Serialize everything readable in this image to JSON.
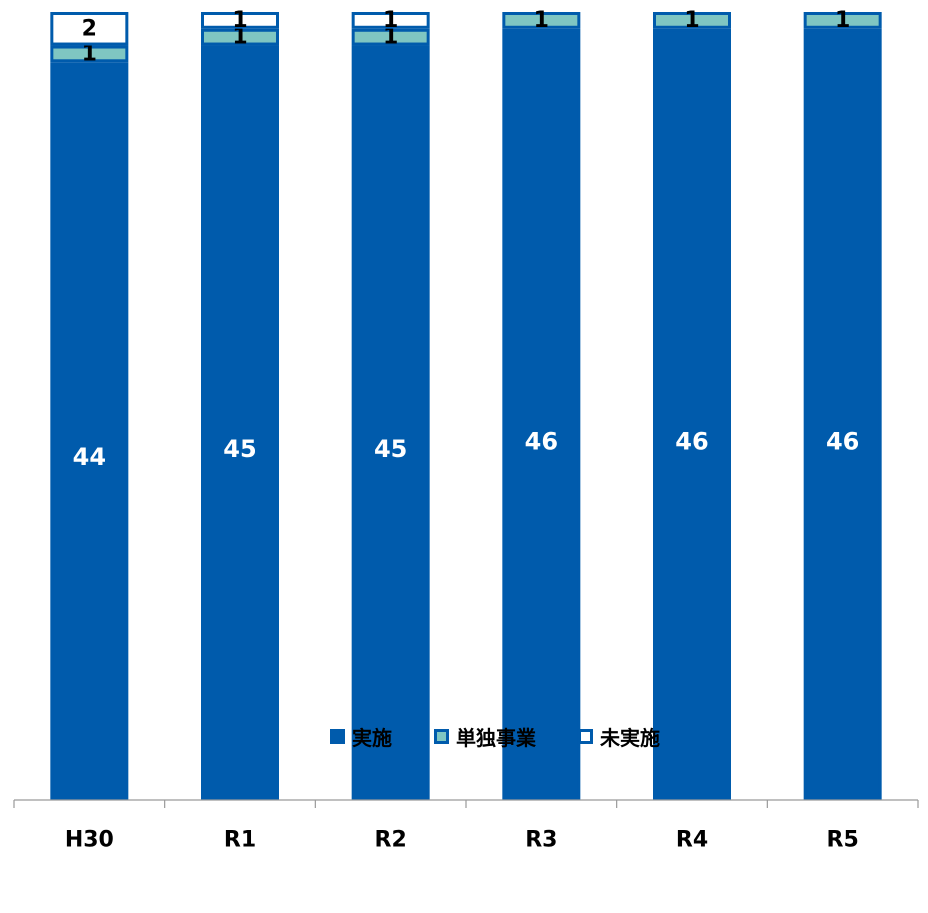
{
  "chart_data": {
    "type": "bar",
    "stacked": true,
    "categories": [
      "H30",
      "R1",
      "R2",
      "R3",
      "R4",
      "R5"
    ],
    "series": [
      {
        "name": "実施",
        "values": [
          44,
          45,
          45,
          46,
          46,
          46
        ],
        "color": "#005bac",
        "label_color": "#ffffff"
      },
      {
        "name": "単独事業",
        "values": [
          1,
          1,
          1,
          1,
          1,
          1
        ],
        "color": "#7fc6c2",
        "label_color": "#000000"
      },
      {
        "name": "未実施",
        "values": [
          2,
          1,
          1,
          0,
          0,
          0
        ],
        "color": "#ffffff",
        "label_color": "#000000"
      }
    ],
    "ylim": [
      0,
      47
    ],
    "grid": false,
    "legend_position": "bottom",
    "border_color": "#005bac"
  }
}
